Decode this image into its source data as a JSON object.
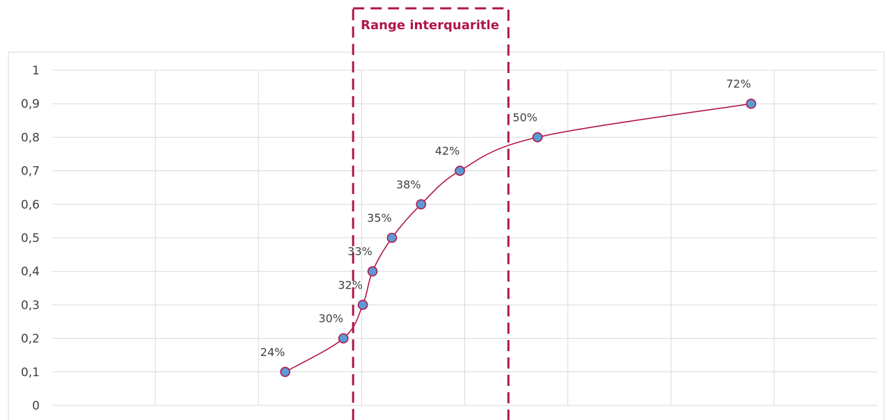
{
  "chart_data": {
    "type": "line",
    "title": "",
    "xlabel": "",
    "ylabel": "",
    "xlim": [
      0,
      0.85
    ],
    "ylim": [
      0,
      1
    ],
    "y_ticks": [
      "0",
      "0,1",
      "0,2",
      "0,3",
      "0,4",
      "0,5",
      "0,6",
      "0,7",
      "0,8",
      "0,9",
      "1"
    ],
    "grid": true,
    "smooth": true,
    "series": [
      {
        "x": [
          0.24,
          0.3,
          0.32,
          0.33,
          0.35,
          0.38,
          0.42,
          0.5,
          0.72
        ],
        "y": [
          0.1,
          0.2,
          0.3,
          0.4,
          0.5,
          0.6,
          0.7,
          0.8,
          0.9
        ],
        "labels": [
          "24%",
          "30%",
          "32%",
          "33%",
          "35%",
          "38%",
          "42%",
          "50%",
          "72%"
        ]
      }
    ],
    "annotation": {
      "label": "Range interquaritle",
      "x_from": 0.31,
      "x_to": 0.47
    },
    "colors": {
      "line": "#b0154a",
      "marker_fill": "#5b9bd5",
      "marker_stroke": "#b0154a",
      "annotation": "#b0154a",
      "grid": "#d9d9d9",
      "frame": "#d9d9d9",
      "text": "#404040"
    }
  }
}
